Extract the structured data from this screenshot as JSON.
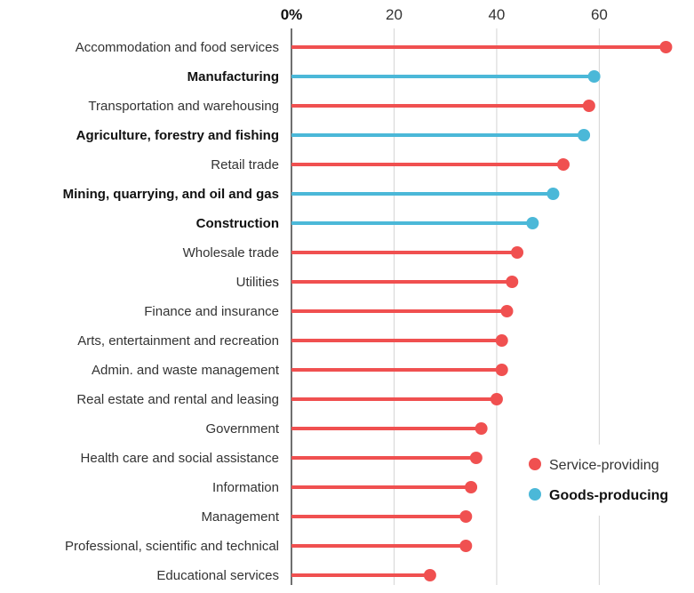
{
  "chart_data": {
    "type": "lollipop-bar",
    "orientation": "horizontal",
    "xlim": [
      0,
      75
    ],
    "ticks": [
      {
        "value": 0,
        "label": "0%"
      },
      {
        "value": 20,
        "label": "20"
      },
      {
        "value": 40,
        "label": "40"
      },
      {
        "value": 60,
        "label": "60"
      }
    ],
    "grid": true,
    "legend_position": "bottom-right",
    "series": [
      {
        "name": "Service-providing",
        "color": "#f05050",
        "bold": false
      },
      {
        "name": "Goods-producing",
        "color": "#4bb8d8",
        "bold": true
      }
    ],
    "categories": [
      {
        "label": "Accommodation and food services",
        "value": 73,
        "series": 0
      },
      {
        "label": "Manufacturing",
        "value": 59,
        "series": 1
      },
      {
        "label": "Transportation and warehousing",
        "value": 58,
        "series": 0
      },
      {
        "label": "Agriculture, forestry and fishing",
        "value": 57,
        "series": 1
      },
      {
        "label": "Retail trade",
        "value": 53,
        "series": 0
      },
      {
        "label": "Mining, quarrying, and oil and gas",
        "value": 51,
        "series": 1
      },
      {
        "label": "Construction",
        "value": 47,
        "series": 1
      },
      {
        "label": "Wholesale trade",
        "value": 44,
        "series": 0
      },
      {
        "label": "Utilities",
        "value": 43,
        "series": 0
      },
      {
        "label": "Finance and insurance",
        "value": 42,
        "series": 0
      },
      {
        "label": "Arts, entertainment and recreation",
        "value": 41,
        "series": 0
      },
      {
        "label": "Admin. and waste management",
        "value": 41,
        "series": 0
      },
      {
        "label": "Real estate and rental and leasing",
        "value": 40,
        "series": 0
      },
      {
        "label": "Government",
        "value": 37,
        "series": 0
      },
      {
        "label": "Health care and social assistance",
        "value": 36,
        "series": 0
      },
      {
        "label": "Information",
        "value": 35,
        "series": 0
      },
      {
        "label": "Management",
        "value": 34,
        "series": 0
      },
      {
        "label": "Professional, scientific and technical",
        "value": 34,
        "series": 0
      },
      {
        "label": "Educational services",
        "value": 27,
        "series": 0
      }
    ]
  }
}
